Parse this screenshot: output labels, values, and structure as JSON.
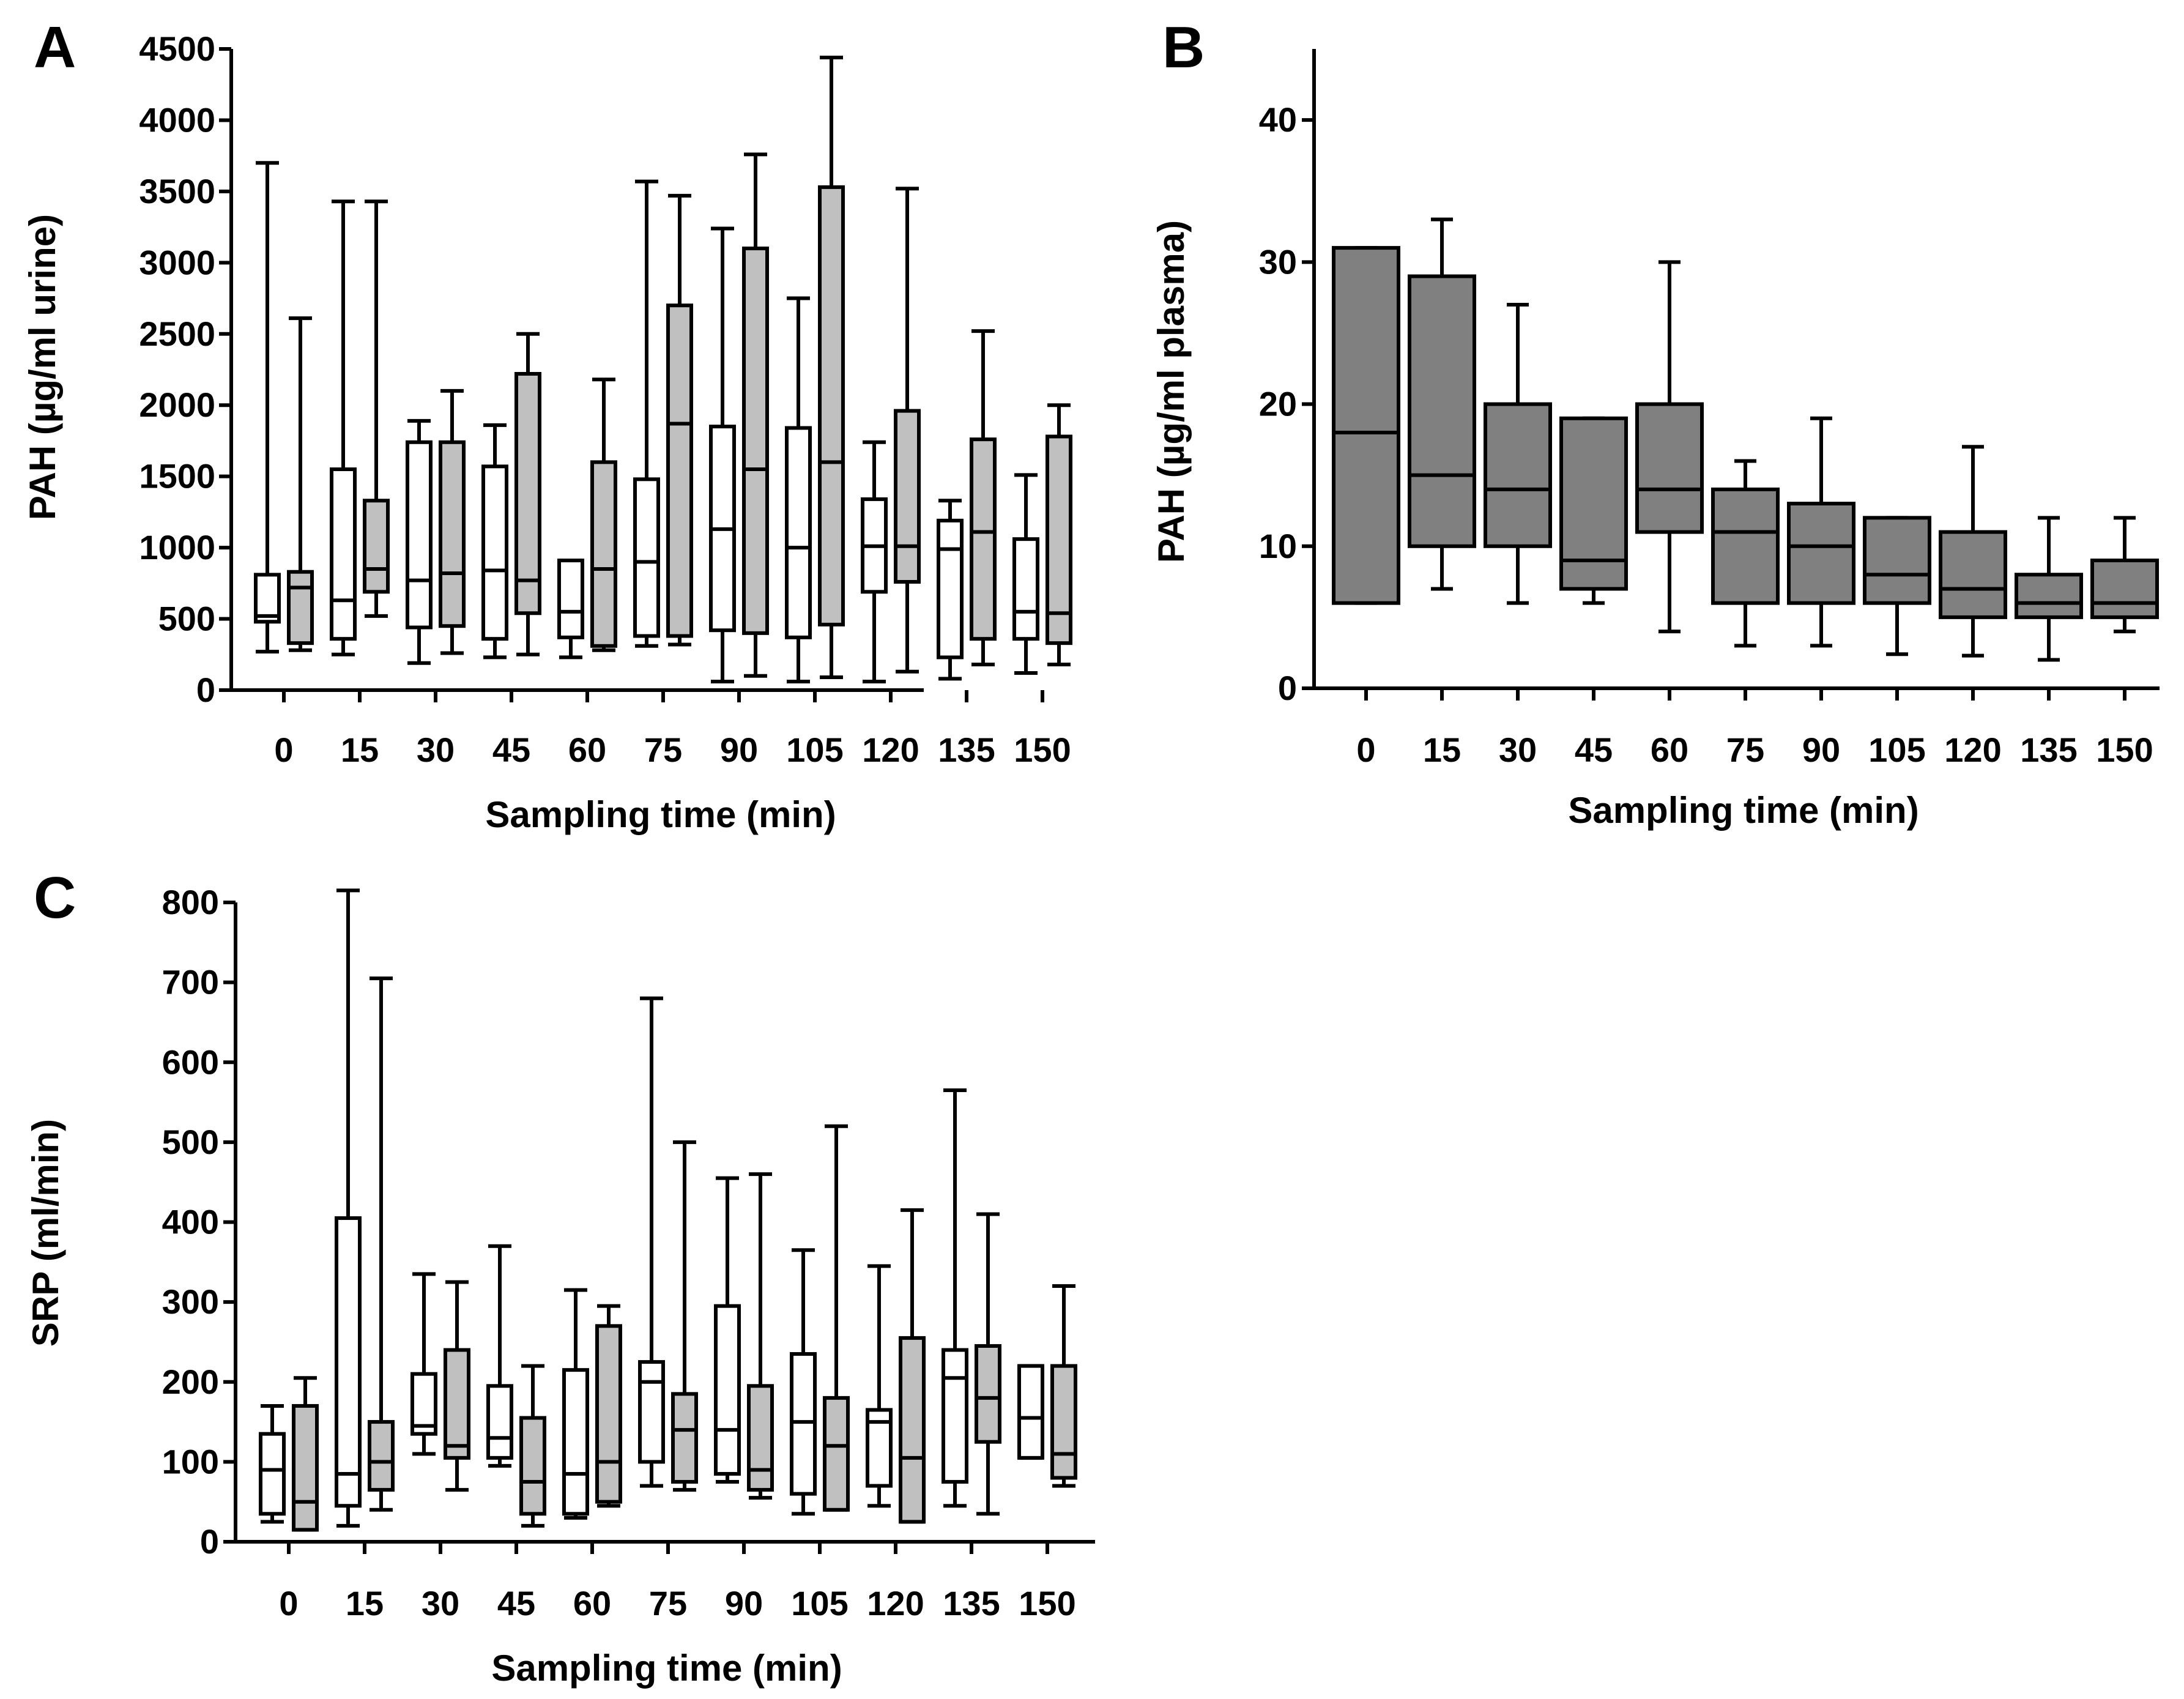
{
  "chart_data": [
    {
      "panel": "A",
      "type": "boxplot",
      "ylabel": "PAH (µg/ml urine)",
      "xlabel": "Sampling time (min)",
      "categories": [
        "0",
        "15",
        "30",
        "45",
        "60",
        "75",
        "90",
        "105",
        "120",
        "135",
        "150"
      ],
      "ylim": [
        0,
        4500
      ],
      "yticks": [
        "0",
        "500",
        "1000",
        "1500",
        "2000",
        "2500",
        "3000",
        "3500",
        "4000",
        "4500"
      ],
      "series": [
        {
          "name": "white",
          "color": "#ffffff",
          "boxes": [
            {
              "min": 270,
              "q1": 480,
              "median": 520,
              "q3": 810,
              "max": 3700
            },
            {
              "min": 250,
              "q1": 360,
              "median": 630,
              "q3": 1550,
              "max": 3430
            },
            {
              "min": 190,
              "q1": 440,
              "median": 770,
              "q3": 1740,
              "max": 1890
            },
            {
              "min": 230,
              "q1": 360,
              "median": 840,
              "q3": 1570,
              "max": 1860
            },
            {
              "min": 230,
              "q1": 370,
              "median": 550,
              "q3": 910,
              "max": 910
            },
            {
              "min": 310,
              "q1": 380,
              "median": 900,
              "q3": 1480,
              "max": 3570
            },
            {
              "min": 60,
              "q1": 420,
              "median": 1130,
              "q3": 1850,
              "max": 3240
            },
            {
              "min": 60,
              "q1": 370,
              "median": 1000,
              "q3": 1840,
              "max": 2750
            },
            {
              "min": 60,
              "q1": 690,
              "median": 1010,
              "q3": 1340,
              "max": 1740
            },
            {
              "min": 80,
              "q1": 230,
              "median": 990,
              "q3": 1190,
              "max": 1330
            },
            {
              "min": 120,
              "q1": 360,
              "median": 550,
              "q3": 1060,
              "max": 1510
            }
          ]
        },
        {
          "name": "gray",
          "color": "#c0c0c0",
          "boxes": [
            {
              "min": 280,
              "q1": 330,
              "median": 720,
              "q3": 830,
              "max": 2610
            },
            {
              "min": 520,
              "q1": 690,
              "median": 850,
              "q3": 1330,
              "max": 3430
            },
            {
              "min": 260,
              "q1": 450,
              "median": 820,
              "q3": 1740,
              "max": 2100
            },
            {
              "min": 250,
              "q1": 540,
              "median": 770,
              "q3": 2220,
              "max": 2500
            },
            {
              "min": 280,
              "q1": 310,
              "median": 850,
              "q3": 1600,
              "max": 2180
            },
            {
              "min": 320,
              "q1": 380,
              "median": 1870,
              "q3": 2700,
              "max": 3470
            },
            {
              "min": 100,
              "q1": 400,
              "median": 1550,
              "q3": 3100,
              "max": 3760
            },
            {
              "min": 90,
              "q1": 460,
              "median": 1600,
              "q3": 3530,
              "max": 4440
            },
            {
              "min": 130,
              "q1": 760,
              "median": 1010,
              "q3": 1960,
              "max": 3520
            },
            {
              "min": 180,
              "q1": 360,
              "median": 1110,
              "q3": 1760,
              "max": 2520
            },
            {
              "min": 180,
              "q1": 330,
              "median": 540,
              "q3": 1780,
              "max": 2000
            }
          ]
        }
      ]
    },
    {
      "panel": "B",
      "type": "boxplot",
      "ylabel": "PAH (µg/ml plasma)",
      "xlabel": "Sampling time (min)",
      "categories": [
        "0",
        "15",
        "30",
        "45",
        "60",
        "75",
        "90",
        "105",
        "120",
        "135",
        "150"
      ],
      "ylim": [
        0,
        45
      ],
      "yticks": [
        "0",
        "10",
        "20",
        "30",
        "40"
      ],
      "series": [
        {
          "name": "plasma",
          "color": "#808080",
          "boxes": [
            {
              "min": 6,
              "q1": 6,
              "median": 18,
              "q3": 31,
              "max": 31
            },
            {
              "min": 7,
              "q1": 10,
              "median": 15,
              "q3": 29,
              "max": 33
            },
            {
              "min": 6,
              "q1": 10,
              "median": 14,
              "q3": 20,
              "max": 27
            },
            {
              "min": 6,
              "q1": 7,
              "median": 9,
              "q3": 19,
              "max": 19
            },
            {
              "min": 4,
              "q1": 11,
              "median": 14,
              "q3": 20,
              "max": 30
            },
            {
              "min": 3,
              "q1": 6,
              "median": 11,
              "q3": 14,
              "max": 16
            },
            {
              "min": 3,
              "q1": 6,
              "median": 10,
              "q3": 13,
              "max": 19
            },
            {
              "min": 2.4,
              "q1": 6,
              "median": 8,
              "q3": 12,
              "max": 12
            },
            {
              "min": 2.3,
              "q1": 5,
              "median": 7,
              "q3": 11,
              "max": 17
            },
            {
              "min": 2,
              "q1": 5,
              "median": 6,
              "q3": 8,
              "max": 12
            },
            {
              "min": 4,
              "q1": 5,
              "median": 6,
              "q3": 9,
              "max": 12
            }
          ]
        }
      ]
    },
    {
      "panel": "C",
      "type": "boxplot",
      "ylabel": "SRP (ml/min)",
      "xlabel": "Sampling time (min)",
      "categories": [
        "0",
        "15",
        "30",
        "45",
        "60",
        "75",
        "90",
        "105",
        "120",
        "135",
        "150"
      ],
      "ylim": [
        0,
        800
      ],
      "yticks": [
        "0",
        "100",
        "200",
        "300",
        "400",
        "500",
        "600",
        "700",
        "800"
      ],
      "series": [
        {
          "name": "white",
          "color": "#ffffff",
          "boxes": [
            {
              "min": 25,
              "q1": 35,
              "median": 90,
              "q3": 135,
              "max": 170
            },
            {
              "min": 20,
              "q1": 45,
              "median": 85,
              "q3": 405,
              "max": 815
            },
            {
              "min": 110,
              "q1": 135,
              "median": 145,
              "q3": 210,
              "max": 335
            },
            {
              "min": 95,
              "q1": 105,
              "median": 130,
              "q3": 195,
              "max": 370
            },
            {
              "min": 30,
              "q1": 35,
              "median": 85,
              "q3": 215,
              "max": 315
            },
            {
              "min": 70,
              "q1": 100,
              "median": 200,
              "q3": 225,
              "max": 680
            },
            {
              "min": 75,
              "q1": 85,
              "median": 140,
              "q3": 295,
              "max": 455
            },
            {
              "min": 35,
              "q1": 60,
              "median": 150,
              "q3": 235,
              "max": 365
            },
            {
              "min": 45,
              "q1": 70,
              "median": 150,
              "q3": 165,
              "max": 345
            },
            {
              "min": 45,
              "q1": 75,
              "median": 205,
              "q3": 240,
              "max": 565
            },
            {
              "min": 105,
              "q1": 105,
              "median": 155,
              "q3": 220,
              "max": 220
            }
          ]
        },
        {
          "name": "gray",
          "color": "#c0c0c0",
          "boxes": [
            {
              "min": 15,
              "q1": 15,
              "median": 50,
              "q3": 170,
              "max": 205
            },
            {
              "min": 40,
              "q1": 65,
              "median": 100,
              "q3": 150,
              "max": 705
            },
            {
              "min": 65,
              "q1": 105,
              "median": 120,
              "q3": 240,
              "max": 325
            },
            {
              "min": 20,
              "q1": 35,
              "median": 75,
              "q3": 155,
              "max": 220
            },
            {
              "min": 45,
              "q1": 50,
              "median": 100,
              "q3": 270,
              "max": 295
            },
            {
              "min": 65,
              "q1": 75,
              "median": 140,
              "q3": 185,
              "max": 500
            },
            {
              "min": 55,
              "q1": 65,
              "median": 90,
              "q3": 195,
              "max": 460
            },
            {
              "min": 40,
              "q1": 40,
              "median": 120,
              "q3": 180,
              "max": 520
            },
            {
              "min": 25,
              "q1": 25,
              "median": 105,
              "q3": 255,
              "max": 415
            },
            {
              "min": 35,
              "q1": 125,
              "median": 180,
              "q3": 245,
              "max": 410
            },
            {
              "min": 70,
              "q1": 80,
              "median": 110,
              "q3": 220,
              "max": 320
            }
          ]
        }
      ]
    }
  ],
  "panels": [
    {
      "letter": "A"
    },
    {
      "letter": "B"
    },
    {
      "letter": "C"
    }
  ]
}
